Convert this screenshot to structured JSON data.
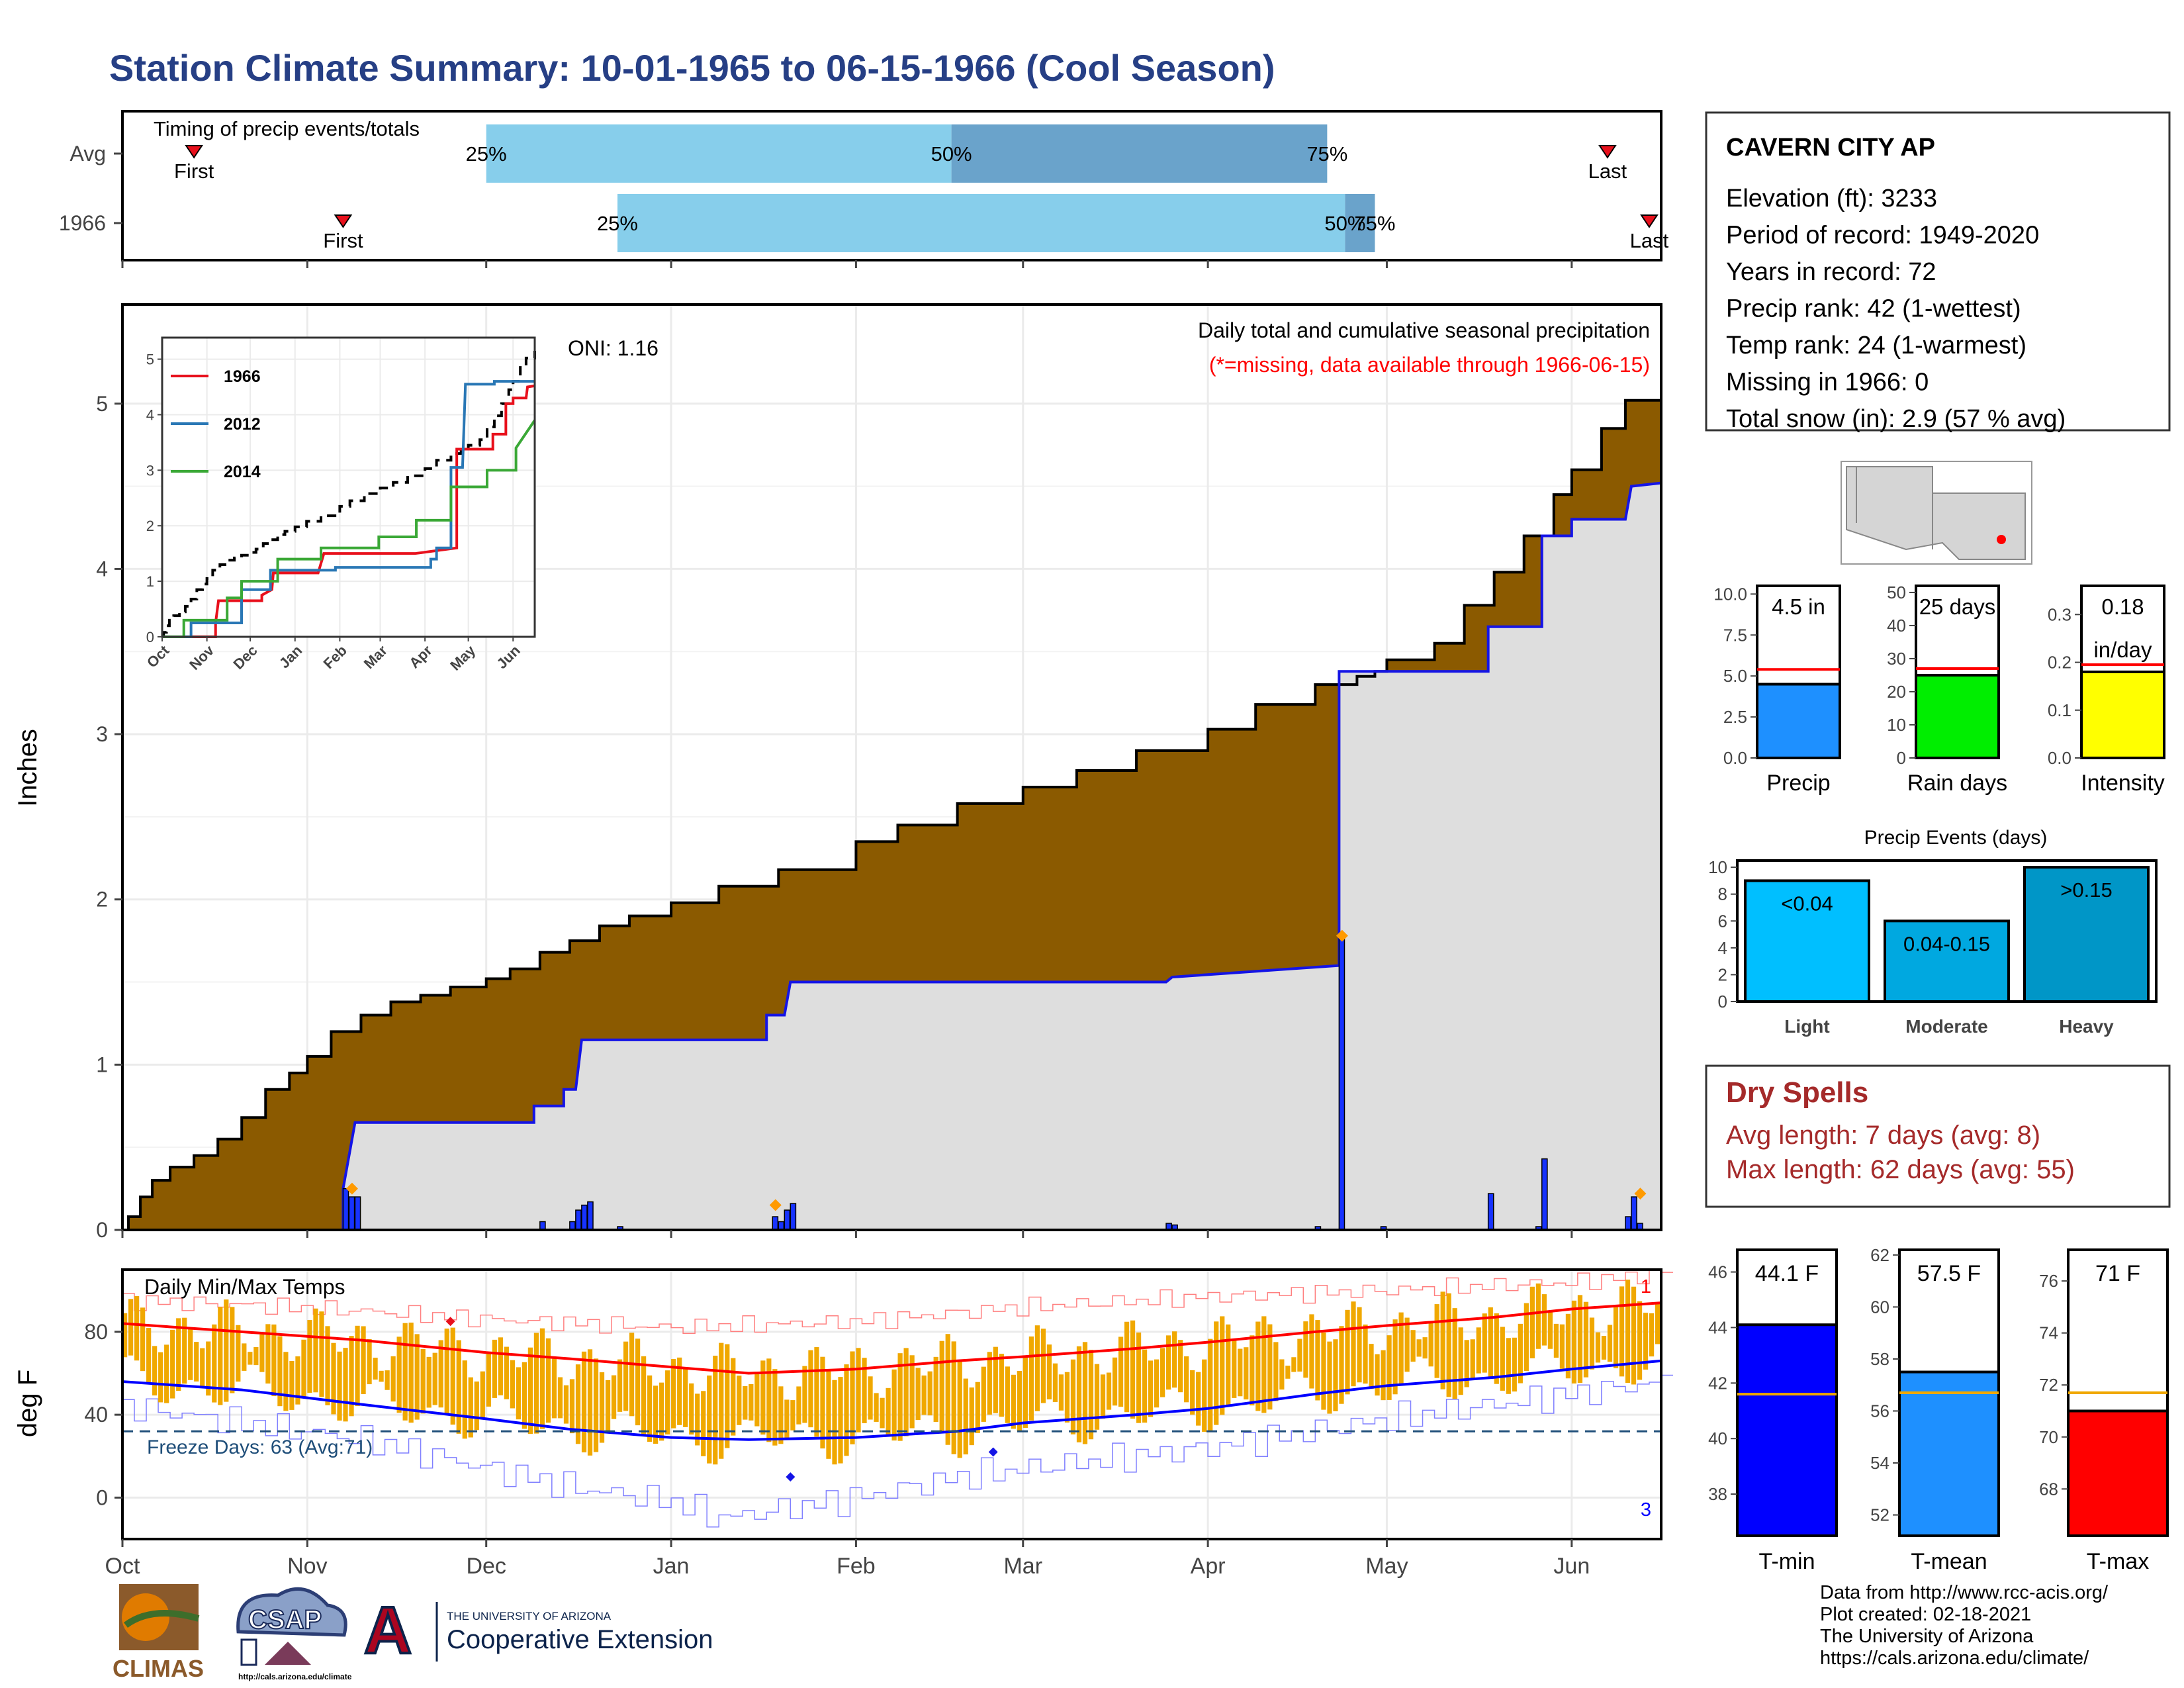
{
  "page": {
    "title": "Station Climate Summary: 10-01-1965 to 06-15-1966 (Cool Season)",
    "footer": [
      "Data from http://www.rcc-acis.org/",
      "Plot created: 02-18-2021",
      "The University of Arizona",
      "https://cals.arizona.edu/climate/"
    ],
    "logos": {
      "climas": "CLIMAS",
      "csap": "CSAP",
      "csap_url": "http://cals.arizona.edu/climate",
      "ua_small": "THE UNIVERSITY OF ARIZONA",
      "ua_big": "Cooperative Extension",
      "ua_mark": "A"
    }
  },
  "months": [
    "Oct",
    "Nov",
    "Dec",
    "Jan",
    "Feb",
    "Mar",
    "Apr",
    "May",
    "Jun"
  ],
  "month_starts": [
    0,
    31,
    61,
    92,
    123,
    151,
    182,
    212,
    243
  ],
  "season_days": 258,
  "station": {
    "name": "CAVERN CITY AP",
    "lines": [
      "Elevation (ft): 3233",
      "Period of record: 1949-2020",
      "Years in record: 72",
      "Precip rank: 42 (1-wettest)",
      "Temp rank: 24 (1-warmest)",
      "Missing in 1966: 0",
      "Total snow (in): 2.9 (57 % avg)"
    ]
  },
  "chart_data": [
    {
      "id": "timing",
      "type": "bar",
      "title": "Timing of precip events/totals",
      "rows": [
        {
          "label": "Avg",
          "first_day": 12,
          "last_day": 249,
          "p25": 61,
          "p50": 139,
          "p75": 202,
          "labels": [
            "First",
            "25%",
            "50%",
            "75%",
            "Last"
          ]
        },
        {
          "label": "1966",
          "first_day": 37,
          "last_day": 256,
          "p25": 83,
          "p50": 205,
          "p75": 210,
          "labels": [
            "First",
            "25%",
            "50%",
            "75%",
            "Last"
          ]
        }
      ],
      "colors": {
        "light": "#87ceeb",
        "dark": "#6aa3cb",
        "marker": "#e8101c"
      }
    },
    {
      "id": "precip",
      "type": "area",
      "title": "Daily total and cumulative seasonal precipitation",
      "note": "(*=missing, data available through 1966-06-15)",
      "oni": "ONI: 1.16",
      "ylabel": "Inches",
      "ylim": [
        0,
        5.6
      ],
      "yticks": [
        0,
        1,
        2,
        3,
        4,
        5
      ],
      "avg_cumulative": [
        [
          0,
          0
        ],
        [
          1,
          0.08
        ],
        [
          3,
          0.2
        ],
        [
          5,
          0.3
        ],
        [
          8,
          0.38
        ],
        [
          12,
          0.45
        ],
        [
          16,
          0.55
        ],
        [
          20,
          0.68
        ],
        [
          24,
          0.85
        ],
        [
          28,
          0.95
        ],
        [
          31,
          1.05
        ],
        [
          35,
          1.2
        ],
        [
          40,
          1.3
        ],
        [
          45,
          1.38
        ],
        [
          50,
          1.42
        ],
        [
          55,
          1.47
        ],
        [
          61,
          1.52
        ],
        [
          65,
          1.58
        ],
        [
          70,
          1.68
        ],
        [
          75,
          1.75
        ],
        [
          80,
          1.84
        ],
        [
          85,
          1.9
        ],
        [
          92,
          1.98
        ],
        [
          100,
          2.08
        ],
        [
          110,
          2.18
        ],
        [
          123,
          2.35
        ],
        [
          130,
          2.45
        ],
        [
          140,
          2.58
        ],
        [
          151,
          2.68
        ],
        [
          160,
          2.78
        ],
        [
          170,
          2.9
        ],
        [
          182,
          3.03
        ],
        [
          190,
          3.18
        ],
        [
          200,
          3.3
        ],
        [
          207,
          3.35
        ],
        [
          210,
          3.38
        ],
        [
          212,
          3.45
        ],
        [
          220,
          3.55
        ],
        [
          225,
          3.78
        ],
        [
          230,
          3.98
        ],
        [
          235,
          4.2
        ],
        [
          240,
          4.45
        ],
        [
          243,
          4.6
        ],
        [
          248,
          4.85
        ],
        [
          252,
          5.02
        ],
        [
          258,
          5.15
        ]
      ],
      "cumulative_1966": [
        [
          0,
          0
        ],
        [
          37,
          0
        ],
        [
          37,
          0.25
        ],
        [
          39,
          0.65
        ],
        [
          69,
          0.65
        ],
        [
          69,
          0.75
        ],
        [
          74,
          0.75
        ],
        [
          74,
          0.85
        ],
        [
          76,
          0.85
        ],
        [
          77,
          1.15
        ],
        [
          108,
          1.15
        ],
        [
          108,
          1.3
        ],
        [
          111,
          1.3
        ],
        [
          112,
          1.5
        ],
        [
          175,
          1.5
        ],
        [
          176,
          1.53
        ],
        [
          204,
          1.6
        ],
        [
          204,
          3.38
        ],
        [
          229,
          3.38
        ],
        [
          229,
          3.65
        ],
        [
          238,
          3.65
        ],
        [
          238,
          4.2
        ],
        [
          243,
          4.2
        ],
        [
          243,
          4.3
        ],
        [
          252,
          4.3
        ],
        [
          253,
          4.5
        ],
        [
          258,
          4.52
        ]
      ],
      "daily_bars": [
        [
          37,
          0.25
        ],
        [
          38,
          0.2
        ],
        [
          39,
          0.2
        ],
        [
          70,
          0.05
        ],
        [
          75,
          0.05
        ],
        [
          76,
          0.12
        ],
        [
          77,
          0.15
        ],
        [
          78,
          0.17
        ],
        [
          83,
          0.02
        ],
        [
          109,
          0.08
        ],
        [
          110,
          0.05
        ],
        [
          111,
          0.12
        ],
        [
          112,
          0.16
        ],
        [
          175,
          0.04
        ],
        [
          176,
          0.03
        ],
        [
          200,
          0.02
        ],
        [
          204,
          1.78
        ],
        [
          211,
          0.02
        ],
        [
          229,
          0.22
        ],
        [
          237,
          0.02
        ],
        [
          238,
          0.43
        ],
        [
          252,
          0.08
        ],
        [
          253,
          0.2
        ],
        [
          254,
          0.04
        ]
      ],
      "missing_markers": [
        [
          38,
          0.25
        ],
        [
          109,
          0.15
        ],
        [
          204,
          1.78
        ],
        [
          254,
          0.22
        ]
      ],
      "colors": {
        "avg_fill": "#8b5a00",
        "season_fill": "#dedede",
        "line": "#1414e6",
        "bar": "#1733ff",
        "marker": "#ff9a00"
      }
    },
    {
      "id": "inset",
      "type": "line",
      "series": [
        {
          "name": "1966",
          "color": "#e8101c",
          "points": [
            [
              0,
              0
            ],
            [
              37,
              0
            ],
            [
              37,
              0.25
            ],
            [
              39,
              0.65
            ],
            [
              69,
              0.65
            ],
            [
              69,
              0.75
            ],
            [
              76,
              0.85
            ],
            [
              77,
              1.15
            ],
            [
              108,
              1.15
            ],
            [
              112,
              1.5
            ],
            [
              175,
              1.5
            ],
            [
              204,
              1.6
            ],
            [
              204,
              3.38
            ],
            [
              229,
              3.38
            ],
            [
              229,
              3.65
            ],
            [
              238,
              3.65
            ],
            [
              238,
              4.2
            ],
            [
              243,
              4.2
            ],
            [
              243,
              4.3
            ],
            [
              252,
              4.3
            ],
            [
              253,
              4.5
            ],
            [
              258,
              4.52
            ]
          ]
        },
        {
          "name": "2012",
          "color": "#2977b5",
          "points": [
            [
              0,
              0
            ],
            [
              20,
              0
            ],
            [
              20,
              0.25
            ],
            [
              55,
              0.25
            ],
            [
              55,
              0.85
            ],
            [
              75,
              0.85
            ],
            [
              75,
              1.2
            ],
            [
              120,
              1.2
            ],
            [
              120,
              1.25
            ],
            [
              186,
              1.25
            ],
            [
              186,
              1.4
            ],
            [
              190,
              1.4
            ],
            [
              190,
              1.6
            ],
            [
              200,
              1.6
            ],
            [
              200,
              3.05
            ],
            [
              208,
              3.05
            ],
            [
              210,
              4.55
            ],
            [
              230,
              4.55
            ],
            [
              230,
              4.6
            ],
            [
              258,
              4.6
            ]
          ]
        },
        {
          "name": "2014",
          "color": "#3aa836",
          "points": [
            [
              0,
              0
            ],
            [
              15,
              0
            ],
            [
              15,
              0.3
            ],
            [
              45,
              0.3
            ],
            [
              45,
              0.7
            ],
            [
              55,
              0.7
            ],
            [
              55,
              1.0
            ],
            [
              80,
              1.0
            ],
            [
              80,
              1.4
            ],
            [
              110,
              1.4
            ],
            [
              110,
              1.6
            ],
            [
              150,
              1.6
            ],
            [
              150,
              1.8
            ],
            [
              176,
              1.8
            ],
            [
              176,
              2.1
            ],
            [
              200,
              2.1
            ],
            [
              200,
              2.7
            ],
            [
              225,
              2.7
            ],
            [
              225,
              3.0
            ],
            [
              245,
              3.0
            ],
            [
              245,
              3.4
            ],
            [
              258,
              3.9
            ]
          ]
        }
      ],
      "avg_series": {
        "name": "Avg",
        "color": "#000000"
      },
      "yticks": [
        0,
        1,
        2,
        3,
        4,
        5
      ]
    },
    {
      "id": "summary_bars",
      "type": "bar",
      "panels": [
        {
          "label": "Precip",
          "value": 4.5,
          "value_label": "4.5 in",
          "avg": 5.4,
          "ylim": [
            0,
            10.5
          ],
          "yticks": [
            "0.0",
            "2.5",
            "5.0",
            "7.5",
            "10.0"
          ],
          "ytick_values": [
            0,
            2.5,
            5,
            7.5,
            10
          ],
          "color": "#1e90ff"
        },
        {
          "label": "Rain days",
          "value": 25,
          "value_label": "25 days",
          "avg": 27,
          "ylim": [
            0,
            52
          ],
          "yticks": [
            "0",
            "10",
            "20",
            "30",
            "40",
            "50"
          ],
          "ytick_values": [
            0,
            10,
            20,
            30,
            40,
            50
          ],
          "color": "#00ee00"
        },
        {
          "label": "Intensity",
          "value": 0.18,
          "value_label": "0.18",
          "value_label2": "in/day",
          "avg": 0.195,
          "ylim": [
            0,
            0.36
          ],
          "yticks": [
            "0.0",
            "0.1",
            "0.2",
            "0.3"
          ],
          "ytick_values": [
            0,
            0.1,
            0.2,
            0.3
          ],
          "color": "#ffff00"
        }
      ]
    },
    {
      "id": "precip_events",
      "type": "bar",
      "title": "Precip Events (days)",
      "categories": [
        "Light",
        "Moderate",
        "Heavy"
      ],
      "values": [
        9,
        6,
        10
      ],
      "bar_labels": [
        "<0.04",
        "0.04-0.15",
        ">0.15"
      ],
      "colors": [
        "#00bfff",
        "#00a8e0",
        "#0096c7"
      ],
      "ylim": [
        0,
        10.5
      ],
      "yticks": [
        0,
        2,
        4,
        6,
        8,
        10
      ]
    },
    {
      "id": "temps",
      "type": "line",
      "title": "Daily Min/Max Temps",
      "ylabel": "deg F",
      "ylim": [
        -20,
        110
      ],
      "yticks": [
        0,
        40,
        80
      ],
      "freeze_label": "Freeze Days: 63 (Avg:71)",
      "freeze_line": 32,
      "corner_labels": {
        "max": "1",
        "min": "3"
      },
      "avg_max": [
        [
          0,
          84
        ],
        [
          20,
          80
        ],
        [
          40,
          76
        ],
        [
          61,
          70
        ],
        [
          75,
          67
        ],
        [
          92,
          63
        ],
        [
          105,
          60
        ],
        [
          123,
          62
        ],
        [
          140,
          66
        ],
        [
          151,
          68
        ],
        [
          170,
          72
        ],
        [
          182,
          75
        ],
        [
          200,
          80
        ],
        [
          212,
          83
        ],
        [
          230,
          87
        ],
        [
          243,
          91
        ],
        [
          258,
          94
        ]
      ],
      "avg_min": [
        [
          0,
          56
        ],
        [
          20,
          52
        ],
        [
          40,
          45
        ],
        [
          61,
          38
        ],
        [
          75,
          33
        ],
        [
          92,
          29
        ],
        [
          105,
          28
        ],
        [
          123,
          29
        ],
        [
          140,
          32
        ],
        [
          151,
          36
        ],
        [
          170,
          40
        ],
        [
          182,
          43
        ],
        [
          200,
          50
        ],
        [
          212,
          54
        ],
        [
          230,
          58
        ],
        [
          243,
          62
        ],
        [
          258,
          66
        ]
      ],
      "rec_max": [
        [
          0,
          95
        ],
        [
          20,
          93
        ],
        [
          40,
          90
        ],
        [
          61,
          86
        ],
        [
          92,
          82
        ],
        [
          123,
          85
        ],
        [
          151,
          92
        ],
        [
          182,
          97
        ],
        [
          212,
          100
        ],
        [
          243,
          104
        ],
        [
          258,
          108
        ]
      ],
      "rec_min": [
        [
          0,
          44
        ],
        [
          20,
          36
        ],
        [
          40,
          28
        ],
        [
          61,
          14
        ],
        [
          75,
          5
        ],
        [
          92,
          -2
        ],
        [
          100,
          -10
        ],
        [
          123,
          0
        ],
        [
          140,
          10
        ],
        [
          151,
          14
        ],
        [
          182,
          24
        ],
        [
          212,
          38
        ],
        [
          243,
          50
        ],
        [
          258,
          56
        ]
      ],
      "markers": [
        {
          "day": 55,
          "value": 85,
          "color": "#e8101c"
        },
        {
          "day": 112,
          "value": 10,
          "color": "#1414e6"
        },
        {
          "day": 146,
          "value": 22,
          "color": "#1414e6"
        }
      ],
      "colors": {
        "bar": "#f0a800",
        "max": "#ff0000",
        "min": "#0000ff",
        "freeze": "#1f4e79"
      }
    },
    {
      "id": "temp_summary",
      "type": "bar",
      "panels": [
        {
          "label": "T-min",
          "value": 44.1,
          "value_label": "44.1 F",
          "avg": 41.6,
          "ylim": [
            36.5,
            46.8
          ],
          "yticks": [
            38,
            40,
            42,
            44,
            46
          ],
          "color": "#0000ff"
        },
        {
          "label": "T-mean",
          "value": 57.5,
          "value_label": "57.5 F",
          "avg": 56.7,
          "ylim": [
            51.2,
            62.2
          ],
          "yticks": [
            52,
            54,
            56,
            58,
            60,
            62
          ],
          "color": "#1e90ff"
        },
        {
          "label": "T-max",
          "value": 71.0,
          "value_label": "71 F",
          "avg": 71.7,
          "ylim": [
            66.2,
            77.2
          ],
          "yticks": [
            68,
            70,
            72,
            74,
            76
          ],
          "color": "#ff0000"
        }
      ]
    }
  ],
  "dry_spells": {
    "title": "Dry Spells",
    "lines": [
      "Avg length: 7 days (avg: 8)",
      "Max length: 62 days (avg: 55)"
    ],
    "color": "#a52a2a"
  }
}
